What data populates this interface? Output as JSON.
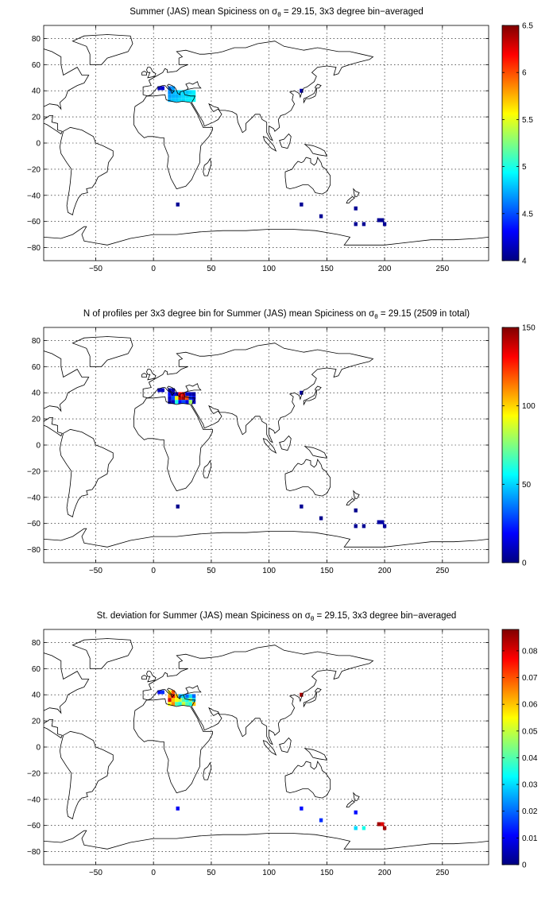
{
  "panels": [
    {
      "title_pre": "Summer (JAS) mean Spiciness on σ",
      "title_sub": "θ",
      "title_post": " = 29.15, 3x3 degree bin−averaged",
      "colorbar": {
        "min": 4,
        "max": 6.5,
        "ticks": [
          "4",
          "4.5",
          "5",
          "5.5",
          "6",
          "6.5"
        ]
      }
    },
    {
      "title_pre": "N of profiles per 3x3 degree bin for Summer (JAS) mean Spiciness on σ",
      "title_sub": "θ",
      "title_post": " = 29.15 (2509 in total)",
      "colorbar": {
        "min": 0,
        "max": 150,
        "ticks": [
          "0",
          "50",
          "100",
          "150"
        ]
      }
    },
    {
      "title_pre": "St. deviation for Summer (JAS) mean Spiciness on σ",
      "title_sub": "θ",
      "title_post": " = 29.15, 3x3 degree bin−averaged",
      "colorbar": {
        "min": 0,
        "max": 0.088,
        "ticks": [
          "0",
          "0.01",
          "0.02",
          "0.03",
          "0.04",
          "0.05",
          "0.06",
          "0.07",
          "0.08"
        ]
      }
    }
  ],
  "chart_data": [
    {
      "type": "heatmap",
      "title": "Summer (JAS) mean Spiciness on σθ = 29.15, 3x3 degree bin−averaged",
      "xlim": [
        -95,
        290
      ],
      "ylim": [
        -90,
        90
      ],
      "xticks": [
        "-50",
        "0",
        "50",
        "100",
        "150",
        "200",
        "250"
      ],
      "yticks": [
        "-80",
        "-60",
        "-40",
        "-20",
        "0",
        "20",
        "40",
        "60",
        "80"
      ],
      "grid": true,
      "colormap": "jet",
      "cells": [
        {
          "lon": 5,
          "lat": 42,
          "value": 4.15
        },
        {
          "lon": 8,
          "lat": 42,
          "value": 4.2
        },
        {
          "lon": 14,
          "lat": 42,
          "value": 4.6
        },
        {
          "lon": 17,
          "lat": 42,
          "value": 4.7
        },
        {
          "lon": 14,
          "lat": 39,
          "value": 4.65
        },
        {
          "lon": 17,
          "lat": 39,
          "value": 4.75
        },
        {
          "lon": 20,
          "lat": 39,
          "value": 4.8
        },
        {
          "lon": 23,
          "lat": 39,
          "value": 4.85
        },
        {
          "lon": 26,
          "lat": 39,
          "value": 4.85
        },
        {
          "lon": 29,
          "lat": 39,
          "value": 4.8
        },
        {
          "lon": 32,
          "lat": 39,
          "value": 4.85
        },
        {
          "lon": 35,
          "lat": 39,
          "value": 4.9
        },
        {
          "lon": 14,
          "lat": 36,
          "value": 4.7
        },
        {
          "lon": 17,
          "lat": 36,
          "value": 4.75
        },
        {
          "lon": 20,
          "lat": 36,
          "value": 4.75
        },
        {
          "lon": 23,
          "lat": 36,
          "value": 4.8
        },
        {
          "lon": 26,
          "lat": 36,
          "value": 4.85
        },
        {
          "lon": 29,
          "lat": 36,
          "value": 4.85
        },
        {
          "lon": 32,
          "lat": 36,
          "value": 4.9
        },
        {
          "lon": 35,
          "lat": 36,
          "value": 4.9
        },
        {
          "lon": 14,
          "lat": 33,
          "value": 4.75
        },
        {
          "lon": 17,
          "lat": 33,
          "value": 4.8
        },
        {
          "lon": 20,
          "lat": 33,
          "value": 4.8
        },
        {
          "lon": 23,
          "lat": 33,
          "value": 4.85
        },
        {
          "lon": 26,
          "lat": 33,
          "value": 4.85
        },
        {
          "lon": 29,
          "lat": 33,
          "value": 4.9
        },
        {
          "lon": 32,
          "lat": 33,
          "value": 4.9
        },
        {
          "lon": 35,
          "lat": 33,
          "value": 4.95
        },
        {
          "lon": 128,
          "lat": 40,
          "value": 4.1
        },
        {
          "lon": 21,
          "lat": -47,
          "value": 4.05
        },
        {
          "lon": 128,
          "lat": -47,
          "value": 4.05
        },
        {
          "lon": 145,
          "lat": -56,
          "value": 4.05
        },
        {
          "lon": 175,
          "lat": -50,
          "value": 4.05
        },
        {
          "lon": 175,
          "lat": -62,
          "value": 4.05
        },
        {
          "lon": 182,
          "lat": -62,
          "value": 4.05
        },
        {
          "lon": 195,
          "lat": -59,
          "value": 4.05
        },
        {
          "lon": 198,
          "lat": -59,
          "value": 4.05
        },
        {
          "lon": 200,
          "lat": -62,
          "value": 4.05
        }
      ]
    },
    {
      "type": "heatmap",
      "title": "N of profiles per 3x3 degree bin for Summer (JAS) mean Spiciness on σθ = 29.15 (2509 in total)",
      "xlim": [
        -95,
        290
      ],
      "ylim": [
        -90,
        90
      ],
      "xticks": [
        "-50",
        "0",
        "50",
        "100",
        "150",
        "200",
        "250"
      ],
      "yticks": [
        "-80",
        "-60",
        "-40",
        "-20",
        "0",
        "20",
        "40",
        "60",
        "80"
      ],
      "grid": true,
      "colormap": "jet",
      "cells": [
        {
          "lon": 5,
          "lat": 42,
          "value": 8
        },
        {
          "lon": 8,
          "lat": 42,
          "value": 10
        },
        {
          "lon": 14,
          "lat": 42,
          "value": 12
        },
        {
          "lon": 17,
          "lat": 42,
          "value": 6
        },
        {
          "lon": 14,
          "lat": 39,
          "value": 20
        },
        {
          "lon": 17,
          "lat": 39,
          "value": 15
        },
        {
          "lon": 20,
          "lat": 39,
          "value": 10
        },
        {
          "lon": 23,
          "lat": 39,
          "value": 130
        },
        {
          "lon": 26,
          "lat": 39,
          "value": 135
        },
        {
          "lon": 29,
          "lat": 39,
          "value": 10
        },
        {
          "lon": 32,
          "lat": 39,
          "value": 8
        },
        {
          "lon": 35,
          "lat": 39,
          "value": 5
        },
        {
          "lon": 14,
          "lat": 36,
          "value": 12
        },
        {
          "lon": 17,
          "lat": 36,
          "value": 30
        },
        {
          "lon": 20,
          "lat": 36,
          "value": 90
        },
        {
          "lon": 23,
          "lat": 36,
          "value": 140
        },
        {
          "lon": 26,
          "lat": 36,
          "value": 145
        },
        {
          "lon": 29,
          "lat": 36,
          "value": 120
        },
        {
          "lon": 32,
          "lat": 36,
          "value": 25
        },
        {
          "lon": 35,
          "lat": 36,
          "value": 15
        },
        {
          "lon": 14,
          "lat": 33,
          "value": 5
        },
        {
          "lon": 17,
          "lat": 33,
          "value": 10
        },
        {
          "lon": 20,
          "lat": 33,
          "value": 60
        },
        {
          "lon": 23,
          "lat": 33,
          "value": 20
        },
        {
          "lon": 26,
          "lat": 33,
          "value": 30
        },
        {
          "lon": 29,
          "lat": 33,
          "value": 15
        },
        {
          "lon": 32,
          "lat": 33,
          "value": 80
        },
        {
          "lon": 35,
          "lat": 33,
          "value": 10
        },
        {
          "lon": 128,
          "lat": 40,
          "value": 4
        },
        {
          "lon": 21,
          "lat": -47,
          "value": 2
        },
        {
          "lon": 128,
          "lat": -47,
          "value": 3
        },
        {
          "lon": 145,
          "lat": -56,
          "value": 2
        },
        {
          "lon": 175,
          "lat": -50,
          "value": 2
        },
        {
          "lon": 175,
          "lat": -62,
          "value": 3
        },
        {
          "lon": 182,
          "lat": -62,
          "value": 3
        },
        {
          "lon": 195,
          "lat": -59,
          "value": 5
        },
        {
          "lon": 198,
          "lat": -59,
          "value": 6
        },
        {
          "lon": 200,
          "lat": -62,
          "value": 4
        }
      ]
    },
    {
      "type": "heatmap",
      "title": "St. deviation for Summer (JAS) mean Spiciness on σθ = 29.15, 3x3 degree bin−averaged",
      "xlim": [
        -95,
        290
      ],
      "ylim": [
        -90,
        90
      ],
      "xticks": [
        "-50",
        "0",
        "50",
        "100",
        "150",
        "200",
        "250"
      ],
      "yticks": [
        "-80",
        "-60",
        "-40",
        "-20",
        "0",
        "20",
        "40",
        "60",
        "80"
      ],
      "grid": true,
      "colormap": "jet",
      "cells": [
        {
          "lon": 5,
          "lat": 42,
          "value": 0.012
        },
        {
          "lon": 8,
          "lat": 42,
          "value": 0.015
        },
        {
          "lon": 14,
          "lat": 42,
          "value": 0.055
        },
        {
          "lon": 17,
          "lat": 42,
          "value": 0.07
        },
        {
          "lon": 14,
          "lat": 39,
          "value": 0.065
        },
        {
          "lon": 17,
          "lat": 39,
          "value": 0.075
        },
        {
          "lon": 20,
          "lat": 39,
          "value": 0.06
        },
        {
          "lon": 23,
          "lat": 39,
          "value": 0.025
        },
        {
          "lon": 26,
          "lat": 39,
          "value": 0.03
        },
        {
          "lon": 29,
          "lat": 39,
          "value": 0.02
        },
        {
          "lon": 32,
          "lat": 39,
          "value": 0.03
        },
        {
          "lon": 35,
          "lat": 39,
          "value": 0.02
        },
        {
          "lon": 14,
          "lat": 36,
          "value": 0.08
        },
        {
          "lon": 17,
          "lat": 36,
          "value": 0.06
        },
        {
          "lon": 20,
          "lat": 36,
          "value": 0.055
        },
        {
          "lon": 23,
          "lat": 36,
          "value": 0.05
        },
        {
          "lon": 26,
          "lat": 36,
          "value": 0.04
        },
        {
          "lon": 29,
          "lat": 36,
          "value": 0.035
        },
        {
          "lon": 32,
          "lat": 36,
          "value": 0.045
        },
        {
          "lon": 35,
          "lat": 36,
          "value": 0.03
        },
        {
          "lon": 14,
          "lat": 33,
          "value": 0.055
        },
        {
          "lon": 17,
          "lat": 33,
          "value": 0.065
        },
        {
          "lon": 20,
          "lat": 33,
          "value": 0.04
        },
        {
          "lon": 23,
          "lat": 33,
          "value": 0.035
        },
        {
          "lon": 26,
          "lat": 33,
          "value": 0.05
        },
        {
          "lon": 29,
          "lat": 33,
          "value": 0.04
        },
        {
          "lon": 32,
          "lat": 33,
          "value": 0.035
        },
        {
          "lon": 35,
          "lat": 33,
          "value": 0.06
        },
        {
          "lon": 128,
          "lat": 40,
          "value": 0.085
        },
        {
          "lon": 21,
          "lat": -47,
          "value": 0.01
        },
        {
          "lon": 128,
          "lat": -47,
          "value": 0.012
        },
        {
          "lon": 145,
          "lat": -56,
          "value": 0.015
        },
        {
          "lon": 175,
          "lat": -50,
          "value": 0.012
        },
        {
          "lon": 175,
          "lat": -62,
          "value": 0.03
        },
        {
          "lon": 182,
          "lat": -62,
          "value": 0.035
        },
        {
          "lon": 195,
          "lat": -59,
          "value": 0.085
        },
        {
          "lon": 198,
          "lat": -59,
          "value": 0.08
        },
        {
          "lon": 200,
          "lat": -62,
          "value": 0.085
        }
      ]
    }
  ]
}
